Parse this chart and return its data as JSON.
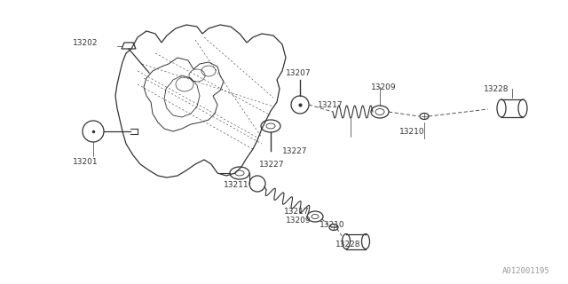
{
  "bg_color": "#ffffff",
  "line_color": "#333333",
  "footer_text": "A012001195",
  "footer_fontsize": 6.5,
  "label_fontsize": 6.5
}
